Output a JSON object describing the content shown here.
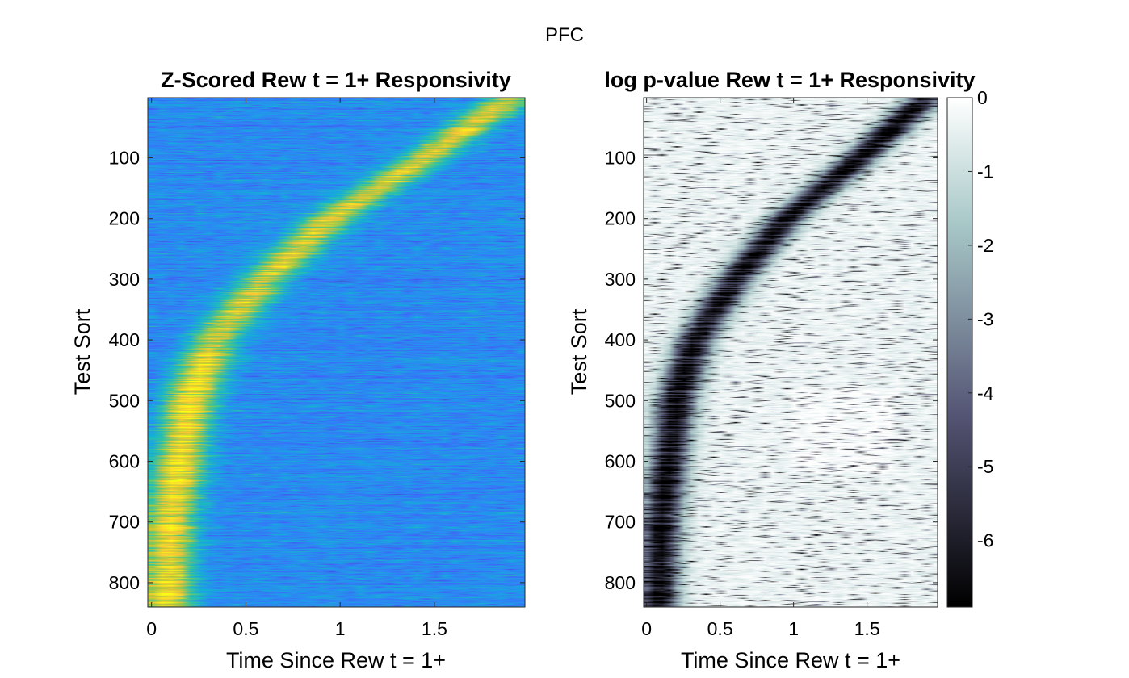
{
  "figure": {
    "title": "PFC"
  },
  "chart_data": [
    {
      "type": "heatmap",
      "title": "Z-Scored Rew t = 1+ Responsivity",
      "xlabel": "Time Since Rew t = 1+",
      "ylabel": "Test Sort",
      "xlim": [
        -0.02,
        1.98
      ],
      "ylim": [
        840,
        1
      ],
      "xticks": [
        0,
        0.5,
        1,
        1.5
      ],
      "xticklabels": [
        "0",
        "0.5",
        "1",
        "1.5"
      ],
      "yticks": [
        100,
        200,
        300,
        400,
        500,
        600,
        700,
        800
      ],
      "yticklabels": [
        "100",
        "200",
        "300",
        "400",
        "500",
        "600",
        "700",
        "800"
      ],
      "colormap": "parula",
      "n_rows": 840,
      "n_time_bins": 40,
      "time_bin_width": 0.05,
      "peak_trajectory": [
        [
          1,
          1.9
        ],
        [
          100,
          1.45
        ],
        [
          200,
          0.95
        ],
        [
          300,
          0.6
        ],
        [
          400,
          0.33
        ],
        [
          500,
          0.2
        ],
        [
          600,
          0.15
        ],
        [
          700,
          0.1
        ],
        [
          840,
          0.08
        ]
      ],
      "colorbar": false
    },
    {
      "type": "heatmap",
      "title": "log p-value Rew t = 1+ Responsivity",
      "xlabel": "Time Since Rew t = 1+",
      "ylabel": "Test Sort",
      "xlim": [
        -0.02,
        1.98
      ],
      "ylim": [
        840,
        1
      ],
      "xticks": [
        0,
        0.5,
        1,
        1.5
      ],
      "xticklabels": [
        "0",
        "0.5",
        "1",
        "1.5"
      ],
      "yticks": [
        100,
        200,
        300,
        400,
        500,
        600,
        700,
        800
      ],
      "yticklabels": [
        "100",
        "200",
        "300",
        "400",
        "500",
        "600",
        "700",
        "800"
      ],
      "colormap": "bone",
      "clim": [
        -6.9,
        0
      ],
      "n_rows": 840,
      "n_time_bins": 40,
      "time_bin_width": 0.05,
      "peak_trajectory": [
        [
          1,
          1.9
        ],
        [
          100,
          1.45
        ],
        [
          200,
          0.95
        ],
        [
          300,
          0.6
        ],
        [
          400,
          0.33
        ],
        [
          500,
          0.2
        ],
        [
          600,
          0.15
        ],
        [
          700,
          0.1
        ],
        [
          840,
          0.08
        ]
      ],
      "colorbar": true,
      "colorbar_ticks": [
        0,
        -1,
        -2,
        -3,
        -4,
        -5,
        -6
      ],
      "colorbar_ticklabels": [
        "0",
        "-1",
        "-2",
        "-3",
        "-4",
        "-5",
        "-6"
      ]
    }
  ]
}
